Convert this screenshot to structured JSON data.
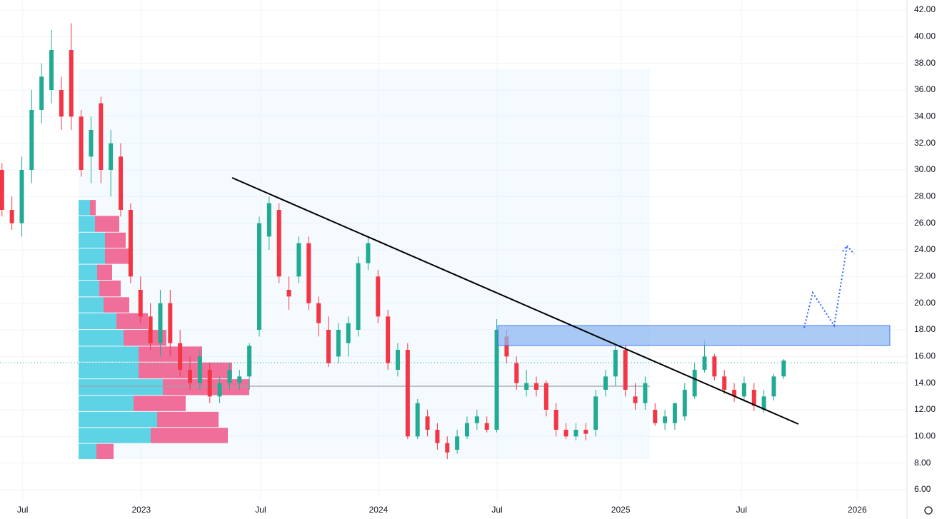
{
  "chart_data": {
    "type": "candlestick",
    "series": [
      {
        "up_color": "#22ab94",
        "down_color": "#f23645",
        "open": [
          30,
          27,
          26,
          30,
          34.5,
          36,
          36,
          39,
          34,
          31,
          35,
          30,
          31,
          27,
          21,
          19,
          17,
          20,
          17,
          15,
          14,
          15,
          13,
          14,
          14,
          14.5,
          18,
          25,
          27,
          21,
          22,
          24.5,
          20,
          18,
          16,
          17,
          18,
          23,
          22,
          19,
          15,
          16.5,
          10,
          11.5,
          10.5,
          9.5,
          9,
          10,
          11,
          11,
          10.5,
          17.5,
          15.5,
          13.5,
          14,
          14,
          12,
          10.5,
          10,
          10.5,
          10.5,
          13.5,
          14.5,
          16.5,
          13,
          12.5,
          12,
          11,
          11,
          11.5,
          13,
          15,
          16,
          14.5,
          13.5,
          13,
          13.5,
          12,
          13,
          14.5
        ],
        "high": [
          30.5,
          28,
          31,
          36,
          38,
          40.5,
          37,
          41,
          34.5,
          34,
          35.5,
          33,
          32,
          27.5,
          22,
          20,
          21,
          21,
          18,
          16,
          16.5,
          15.5,
          14.5,
          15.5,
          15,
          17,
          26.5,
          28,
          27.5,
          22,
          25,
          25,
          20.5,
          19,
          18.5,
          19,
          23.5,
          25,
          22.5,
          19.5,
          17,
          17,
          12.8,
          12,
          11,
          10,
          10.5,
          11.5,
          12,
          11.5,
          18.8,
          18,
          16,
          15,
          14.5,
          14.2,
          12.5,
          11,
          11,
          11,
          13.5,
          15,
          16.8,
          16.8,
          14,
          14.5,
          12.5,
          12,
          12.5,
          14,
          15.5,
          17.2,
          16.2,
          15,
          14,
          14.5,
          14,
          13.5,
          14.7,
          15.8
        ],
        "low": [
          26.5,
          25.5,
          25,
          29,
          33.5,
          35,
          33,
          33,
          29.5,
          29,
          29,
          28,
          26.5,
          21.5,
          18.5,
          16.5,
          16,
          16,
          14.5,
          13.5,
          13.5,
          12.5,
          12.5,
          13.5,
          13.5,
          13.5,
          17.5,
          24,
          21.5,
          19.5,
          21.5,
          19.5,
          17.5,
          15.2,
          15.5,
          16,
          17.5,
          22.5,
          18.5,
          15,
          14.5,
          9.8,
          9.8,
          10,
          9,
          8.3,
          8.7,
          9.8,
          10.5,
          10.3,
          10.3,
          15.5,
          13.5,
          13,
          13,
          11.5,
          10,
          9.8,
          9.7,
          9.7,
          10,
          13,
          13.8,
          13,
          12,
          12,
          10.8,
          10.5,
          10.5,
          11.2,
          12.8,
          14.8,
          14.2,
          13.2,
          12.6,
          12.6,
          11.9,
          11.8,
          12.7,
          14.3
        ],
        "close": [
          27,
          26,
          30,
          34.5,
          37,
          39,
          34,
          34,
          30,
          33,
          30,
          32,
          27,
          22,
          19,
          17,
          20,
          17,
          15,
          14,
          16,
          13,
          14,
          15,
          14.5,
          16.8,
          26,
          27.5,
          22,
          20.5,
          24.5,
          20,
          18.5,
          15.5,
          18,
          18.5,
          23,
          24.5,
          19,
          15.5,
          16.5,
          10,
          12.5,
          10.5,
          9.5,
          8.8,
          10,
          11,
          11.5,
          10.5,
          18,
          16,
          14,
          14,
          13.5,
          12,
          10.5,
          10,
          10.5,
          10.2,
          13,
          14.5,
          16.5,
          13.5,
          12.5,
          14,
          11,
          11.5,
          12.5,
          13.5,
          15,
          16,
          14.5,
          13.5,
          13,
          14,
          12.3,
          13,
          14.5,
          15.7
        ]
      }
    ],
    "volume_profile": {
      "up_color": "#5fd3e6",
      "down_color": "#f06e9a",
      "levels": [
        8.3,
        9.5,
        10.7,
        11.9,
        13.1,
        14.35,
        15.6,
        16.8,
        18.05,
        19.3,
        20.5,
        21.75,
        22.95,
        24.15,
        25.35,
        26.6,
        27.8
      ],
      "up": [
        25,
        101,
        110,
        77,
        118,
        84,
        84,
        63,
        53,
        35,
        29,
        26,
        37,
        37,
        23,
        16
      ],
      "down": [
        24,
        108,
        86,
        73,
        121,
        131,
        89,
        60,
        44,
        36,
        30,
        21,
        33,
        29,
        34,
        8
      ]
    },
    "xlim": [
      -0.2,
      91.1
    ],
    "xticks": [
      {
        "value": 2.09,
        "label": "Jul"
      },
      {
        "value": 14.08,
        "label": "2023"
      },
      {
        "value": 26.14,
        "label": "Jul"
      },
      {
        "value": 38.05,
        "label": "2024"
      },
      {
        "value": 50.04,
        "label": "Jul"
      },
      {
        "value": 62.53,
        "label": "2025"
      },
      {
        "value": 74.74,
        "label": "Jul"
      },
      {
        "value": 86.43,
        "label": "2026"
      }
    ],
    "ylim": [
      6,
      42
    ],
    "yticks": [
      {
        "value": 6,
        "label": "6.00"
      },
      {
        "value": 8,
        "label": "8.00"
      },
      {
        "value": 10,
        "label": "10.00"
      },
      {
        "value": 12,
        "label": "12.00"
      },
      {
        "value": 14,
        "label": "14.00"
      },
      {
        "value": 16,
        "label": "16.00"
      },
      {
        "value": 18,
        "label": "18.00"
      },
      {
        "value": 20,
        "label": "20.00"
      },
      {
        "value": 22,
        "label": "22.00"
      },
      {
        "value": 24,
        "label": "24.00"
      },
      {
        "value": 26,
        "label": "26.00"
      },
      {
        "value": 28,
        "label": "28.00"
      },
      {
        "value": 30,
        "label": "30.00"
      },
      {
        "value": 32,
        "label": "32.00"
      },
      {
        "value": 34,
        "label": "34.00"
      },
      {
        "value": 36,
        "label": "36.00"
      },
      {
        "value": 38,
        "label": "38.00"
      },
      {
        "value": 40,
        "label": "40.00"
      },
      {
        "value": 42,
        "label": "42.00"
      }
    ],
    "grid": true
  }
}
